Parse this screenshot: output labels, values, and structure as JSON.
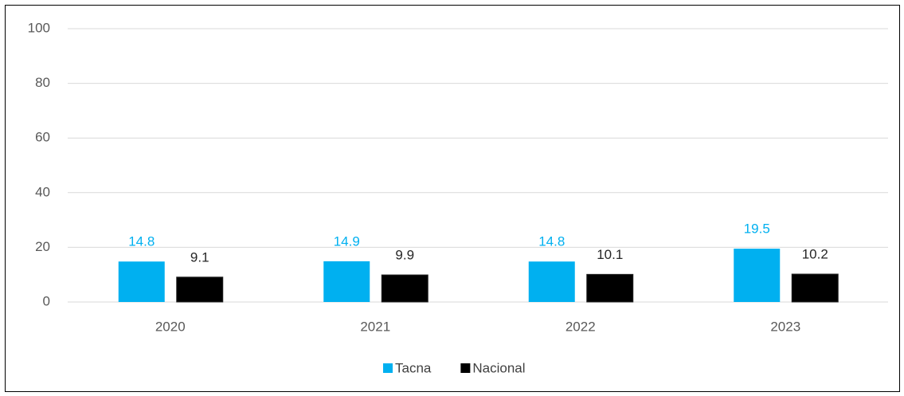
{
  "chart_data": {
    "type": "bar",
    "categories": [
      "2020",
      "2021",
      "2022",
      "2023"
    ],
    "series": [
      {
        "name": "Tacna",
        "color": "#00b0f0",
        "values": [
          14.8,
          14.9,
          14.8,
          19.5
        ]
      },
      {
        "name": "Nacional",
        "color": "#000000",
        "values": [
          9.1,
          9.9,
          10.1,
          10.2
        ]
      }
    ],
    "ylim": [
      0,
      100
    ],
    "yticks": [
      0,
      20,
      40,
      60,
      80,
      100
    ],
    "grid": true,
    "legend": "bottom"
  }
}
